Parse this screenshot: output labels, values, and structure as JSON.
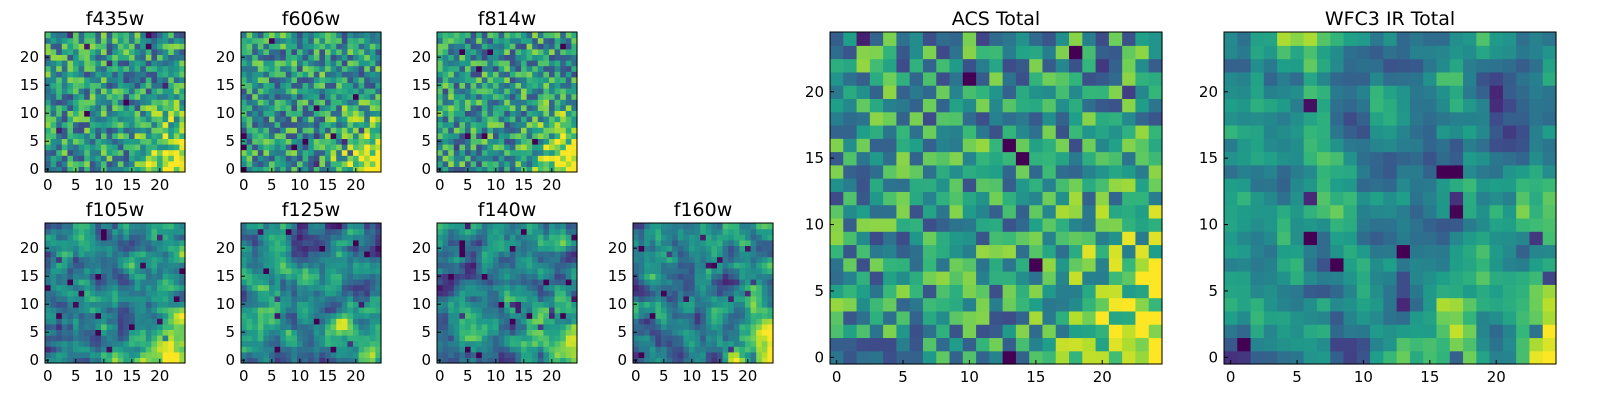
{
  "figure": {
    "panels": [
      {
        "title": "f435w",
        "xticks": [
          "0",
          "5",
          "10",
          "15",
          "20"
        ],
        "yticks": [
          "0",
          "5",
          "10",
          "15",
          "20"
        ],
        "texture": "noisy",
        "seed": 11
      },
      {
        "title": "f606w",
        "xticks": [
          "0",
          "5",
          "10",
          "15",
          "20"
        ],
        "yticks": [
          "0",
          "5",
          "10",
          "15",
          "20"
        ],
        "texture": "noisy",
        "seed": 23
      },
      {
        "title": "f814w",
        "xticks": [
          "0",
          "5",
          "10",
          "15",
          "20"
        ],
        "yticks": [
          "0",
          "5",
          "10",
          "15",
          "20"
        ],
        "texture": "noisy",
        "seed": 37
      },
      {
        "title": "f105w",
        "xticks": [
          "0",
          "5",
          "10",
          "15",
          "20"
        ],
        "yticks": [
          "0",
          "5",
          "10",
          "15",
          "20"
        ],
        "texture": "smooth",
        "seed": 41
      },
      {
        "title": "f125w",
        "xticks": [
          "0",
          "5",
          "10",
          "15",
          "20"
        ],
        "yticks": [
          "0",
          "5",
          "10",
          "15",
          "20"
        ],
        "texture": "smooth",
        "seed": 53
      },
      {
        "title": "f140w",
        "xticks": [
          "0",
          "5",
          "10",
          "15",
          "20"
        ],
        "yticks": [
          "0",
          "5",
          "10",
          "15",
          "20"
        ],
        "texture": "smooth",
        "seed": 67
      },
      {
        "title": "f160w",
        "xticks": [
          "0",
          "5",
          "10",
          "15",
          "20"
        ],
        "yticks": [
          "0",
          "5",
          "10",
          "15",
          "20"
        ],
        "texture": "smooth",
        "seed": 79
      },
      {
        "title": "ACS Total",
        "xticks": [
          "0",
          "5",
          "10",
          "15",
          "20"
        ],
        "yticks": [
          "0",
          "5",
          "10",
          "15",
          "20"
        ],
        "texture": "noisy",
        "seed": 97
      },
      {
        "title": "WFC3 IR Total",
        "xticks": [
          "0",
          "5",
          "10",
          "15",
          "20"
        ],
        "yticks": [
          "0",
          "5",
          "10",
          "15",
          "20"
        ],
        "texture": "smooth",
        "seed": 131
      }
    ]
  },
  "chart_data": {
    "type": "heatmap",
    "grid_size": [
      25,
      25
    ],
    "xlim": [
      -0.5,
      24.5
    ],
    "ylim": [
      -0.5,
      24.5
    ],
    "colormap": "viridis",
    "tick_values": [
      0,
      5,
      10,
      15,
      20
    ],
    "note": "Pixel intensities per band are approximated; brighter (yellow) region toward lower-right in every panel."
  }
}
